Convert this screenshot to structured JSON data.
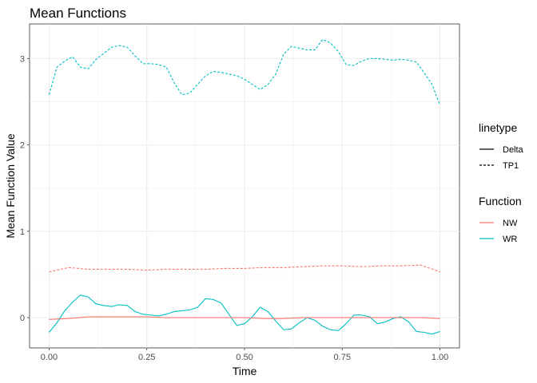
{
  "chart_data": {
    "type": "line",
    "title": "Mean Functions",
    "xlabel": "Time",
    "ylabel": "Mean Function Value",
    "xlim": [
      -0.05,
      1.05
    ],
    "ylim": [
      -0.35,
      3.4
    ],
    "xticks": [
      0,
      0.25,
      0.5,
      0.75,
      1
    ],
    "xtick_labels": [
      "0.00",
      "0.25",
      "0.50",
      "0.75",
      "1.00"
    ],
    "yticks": [
      0,
      1,
      2,
      3
    ],
    "ytick_labels": [
      "0",
      "1",
      "2",
      "3"
    ],
    "grid": true,
    "legend_placement": "right",
    "legends": [
      {
        "title": "linetype",
        "entries": [
          {
            "label": "Delta",
            "dash": "solid"
          },
          {
            "label": "TP1",
            "dash": "dotted"
          }
        ]
      },
      {
        "title": "Function",
        "entries": [
          {
            "label": "NW",
            "color": "#F8766D"
          },
          {
            "label": "WR",
            "color": "#00BFC4"
          }
        ]
      }
    ],
    "series": [
      {
        "function": "WR",
        "linetype": "TP1",
        "color": "#00BFC4",
        "dash": "dotted",
        "points": [
          [
            0,
            2.58
          ],
          [
            0.02,
            2.9
          ],
          [
            0.04,
            2.97
          ],
          [
            0.06,
            3.02
          ],
          [
            0.08,
            2.9
          ],
          [
            0.1,
            2.88
          ],
          [
            0.12,
            2.99
          ],
          [
            0.14,
            3.06
          ],
          [
            0.16,
            3.13
          ],
          [
            0.18,
            3.15
          ],
          [
            0.2,
            3.13
          ],
          [
            0.22,
            3.03
          ],
          [
            0.24,
            2.94
          ],
          [
            0.26,
            2.94
          ],
          [
            0.28,
            2.93
          ],
          [
            0.3,
            2.9
          ],
          [
            0.32,
            2.72
          ],
          [
            0.34,
            2.58
          ],
          [
            0.36,
            2.6
          ],
          [
            0.38,
            2.7
          ],
          [
            0.4,
            2.8
          ],
          [
            0.42,
            2.85
          ],
          [
            0.44,
            2.84
          ],
          [
            0.46,
            2.82
          ],
          [
            0.48,
            2.8
          ],
          [
            0.5,
            2.76
          ],
          [
            0.52,
            2.7
          ],
          [
            0.54,
            2.64
          ],
          [
            0.56,
            2.7
          ],
          [
            0.58,
            2.82
          ],
          [
            0.6,
            3.05
          ],
          [
            0.62,
            3.14
          ],
          [
            0.64,
            3.12
          ],
          [
            0.66,
            3.1
          ],
          [
            0.68,
            3.1
          ],
          [
            0.7,
            3.22
          ],
          [
            0.72,
            3.18
          ],
          [
            0.74,
            3.08
          ],
          [
            0.76,
            2.93
          ],
          [
            0.78,
            2.92
          ],
          [
            0.8,
            2.97
          ],
          [
            0.82,
            3.0
          ],
          [
            0.84,
            3.0
          ],
          [
            0.86,
            2.99
          ],
          [
            0.88,
            2.98
          ],
          [
            0.9,
            2.99
          ],
          [
            0.92,
            2.98
          ],
          [
            0.94,
            2.96
          ],
          [
            0.96,
            2.83
          ],
          [
            0.98,
            2.7
          ],
          [
            1,
            2.46
          ]
        ]
      },
      {
        "function": "NW",
        "linetype": "TP1",
        "color": "#F8766D",
        "dash": "dotted",
        "points": [
          [
            0,
            0.53
          ],
          [
            0.05,
            0.58
          ],
          [
            0.1,
            0.56
          ],
          [
            0.15,
            0.56
          ],
          [
            0.2,
            0.56
          ],
          [
            0.25,
            0.55
          ],
          [
            0.3,
            0.56
          ],
          [
            0.35,
            0.56
          ],
          [
            0.4,
            0.56
          ],
          [
            0.45,
            0.57
          ],
          [
            0.5,
            0.57
          ],
          [
            0.55,
            0.58
          ],
          [
            0.6,
            0.58
          ],
          [
            0.65,
            0.59
          ],
          [
            0.7,
            0.6
          ],
          [
            0.75,
            0.6
          ],
          [
            0.8,
            0.59
          ],
          [
            0.85,
            0.6
          ],
          [
            0.9,
            0.6
          ],
          [
            0.95,
            0.61
          ],
          [
            1,
            0.53
          ]
        ]
      },
      {
        "function": "WR",
        "linetype": "Delta",
        "color": "#00BFC4",
        "dash": "solid",
        "points": [
          [
            0,
            -0.17
          ],
          [
            0.02,
            -0.06
          ],
          [
            0.04,
            0.08
          ],
          [
            0.06,
            0.18
          ],
          [
            0.08,
            0.26
          ],
          [
            0.1,
            0.24
          ],
          [
            0.12,
            0.16
          ],
          [
            0.14,
            0.14
          ],
          [
            0.16,
            0.13
          ],
          [
            0.18,
            0.15
          ],
          [
            0.2,
            0.14
          ],
          [
            0.22,
            0.07
          ],
          [
            0.24,
            0.04
          ],
          [
            0.26,
            0.03
          ],
          [
            0.28,
            0.02
          ],
          [
            0.3,
            0.04
          ],
          [
            0.32,
            0.07
          ],
          [
            0.34,
            0.08
          ],
          [
            0.36,
            0.09
          ],
          [
            0.38,
            0.12
          ],
          [
            0.4,
            0.22
          ],
          [
            0.42,
            0.21
          ],
          [
            0.44,
            0.17
          ],
          [
            0.46,
            0.04
          ],
          [
            0.48,
            -0.09
          ],
          [
            0.5,
            -0.07
          ],
          [
            0.52,
            0.01
          ],
          [
            0.54,
            0.12
          ],
          [
            0.56,
            0.07
          ],
          [
            0.58,
            -0.04
          ],
          [
            0.6,
            -0.14
          ],
          [
            0.62,
            -0.13
          ],
          [
            0.64,
            -0.06
          ],
          [
            0.66,
            0.0
          ],
          [
            0.68,
            -0.03
          ],
          [
            0.7,
            -0.1
          ],
          [
            0.72,
            -0.14
          ],
          [
            0.74,
            -0.15
          ],
          [
            0.76,
            -0.07
          ],
          [
            0.78,
            0.03
          ],
          [
            0.8,
            0.03
          ],
          [
            0.82,
            0.01
          ],
          [
            0.84,
            -0.07
          ],
          [
            0.86,
            -0.05
          ],
          [
            0.88,
            -0.01
          ],
          [
            0.9,
            0.01
          ],
          [
            0.92,
            -0.05
          ],
          [
            0.94,
            -0.16
          ],
          [
            0.96,
            -0.17
          ],
          [
            0.98,
            -0.19
          ],
          [
            1,
            -0.16
          ]
        ]
      },
      {
        "function": "NW",
        "linetype": "Delta",
        "color": "#F8766D",
        "dash": "solid",
        "points": [
          [
            0,
            -0.02
          ],
          [
            0.05,
            -0.01
          ],
          [
            0.1,
            0.01
          ],
          [
            0.15,
            0.01
          ],
          [
            0.2,
            0.01
          ],
          [
            0.25,
            0.01
          ],
          [
            0.3,
            0.0
          ],
          [
            0.35,
            0.0
          ],
          [
            0.4,
            0.0
          ],
          [
            0.45,
            0.0
          ],
          [
            0.5,
            0.0
          ],
          [
            0.55,
            -0.01
          ],
          [
            0.6,
            -0.01
          ],
          [
            0.65,
            0.0
          ],
          [
            0.7,
            0.0
          ],
          [
            0.75,
            0.0
          ],
          [
            0.8,
            0.0
          ],
          [
            0.85,
            0.0
          ],
          [
            0.9,
            0.0
          ],
          [
            0.95,
            0.0
          ],
          [
            1,
            -0.01
          ]
        ]
      }
    ]
  }
}
